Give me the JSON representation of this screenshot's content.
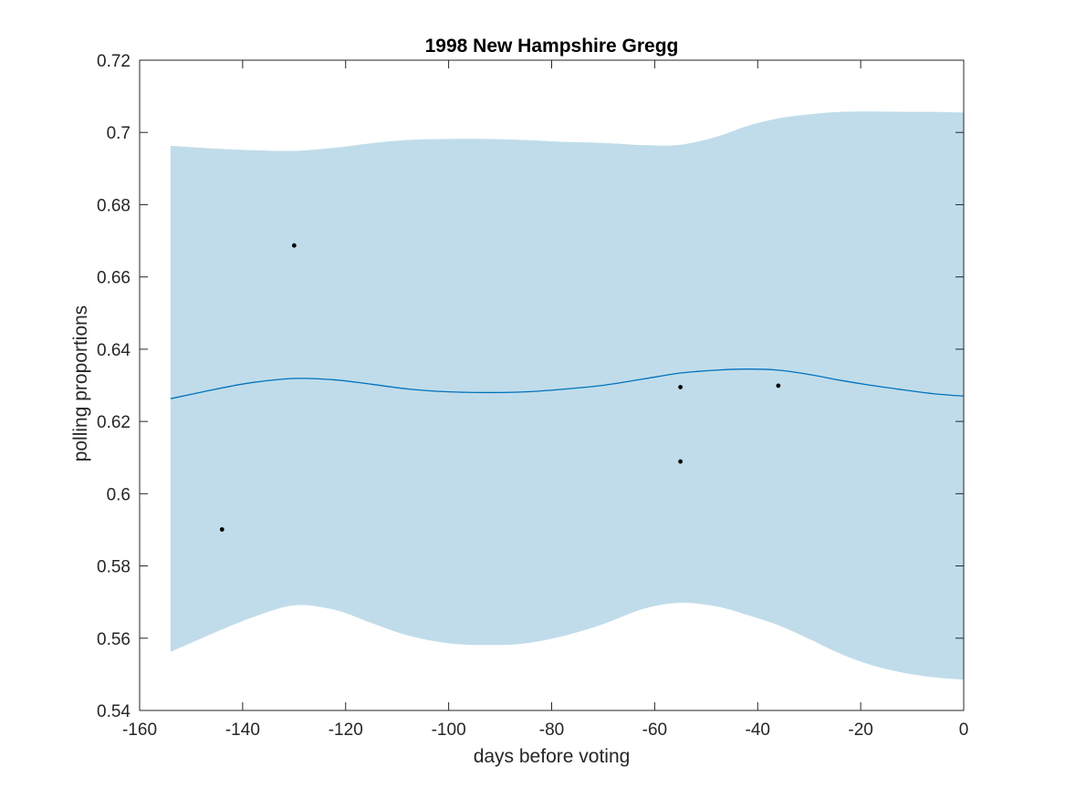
{
  "chart_data": {
    "type": "line",
    "title": "1998 New Hampshire Gregg",
    "xlabel": "days before voting",
    "ylabel": "polling proportions",
    "xlim": [
      -160,
      0
    ],
    "ylim": [
      0.54,
      0.72
    ],
    "xticks": [
      -160,
      -140,
      -120,
      -100,
      -80,
      -60,
      -40,
      -20,
      0
    ],
    "yticks": [
      0.54,
      0.56,
      0.58,
      0.6,
      0.62,
      0.64,
      0.66,
      0.68,
      0.7,
      0.72
    ],
    "xtick_labels": [
      "-160",
      "-140",
      "-120",
      "-100",
      "-80",
      "-60",
      "-40",
      "-20",
      "0"
    ],
    "ytick_labels": [
      "0.54",
      "0.56",
      "0.58",
      "0.6",
      "0.62",
      "0.64",
      "0.66",
      "0.68",
      "0.7",
      "0.72"
    ],
    "grid": false,
    "colors": {
      "band": "#c0dcea",
      "line": "#0072bd",
      "points": "#000000",
      "axes": "#262626"
    },
    "mean_line": {
      "x": [
        -154,
        -145,
        -138,
        -130,
        -122,
        -115,
        -108,
        -100,
        -92,
        -85,
        -78,
        -70,
        -62,
        -55,
        -48,
        -42,
        -36,
        -30,
        -24,
        -18,
        -12,
        -6,
        0
      ],
      "y": [
        0.6263,
        0.629,
        0.6308,
        0.6319,
        0.6315,
        0.6303,
        0.629,
        0.6282,
        0.628,
        0.6282,
        0.6289,
        0.63,
        0.6318,
        0.6334,
        0.6342,
        0.6345,
        0.6342,
        0.633,
        0.6314,
        0.63,
        0.6288,
        0.6277,
        0.627
      ]
    },
    "confidence_band": {
      "x": [
        -154,
        -145,
        -138,
        -130,
        -122,
        -115,
        -108,
        -100,
        -92,
        -85,
        -78,
        -70,
        -62,
        -55,
        -48,
        -42,
        -36,
        -30,
        -24,
        -18,
        -12,
        -6,
        0
      ],
      "upper": [
        0.6963,
        0.6955,
        0.6951,
        0.6949,
        0.6958,
        0.697,
        0.6979,
        0.6982,
        0.6982,
        0.6979,
        0.6974,
        0.6971,
        0.6965,
        0.6966,
        0.6988,
        0.7018,
        0.7039,
        0.705,
        0.7057,
        0.7058,
        0.7057,
        0.7057,
        0.7055
      ],
      "lower": [
        0.5562,
        0.5618,
        0.5658,
        0.5691,
        0.5678,
        0.5642,
        0.5608,
        0.5586,
        0.5581,
        0.5586,
        0.5605,
        0.5639,
        0.5682,
        0.5698,
        0.5688,
        0.5664,
        0.5636,
        0.5598,
        0.5557,
        0.5526,
        0.5505,
        0.5492,
        0.5485
      ]
    },
    "points": {
      "x": [
        -144,
        -130,
        -55,
        -55,
        -36
      ],
      "y": [
        0.5901,
        0.6687,
        0.6295,
        0.6089,
        0.6299
      ]
    }
  }
}
